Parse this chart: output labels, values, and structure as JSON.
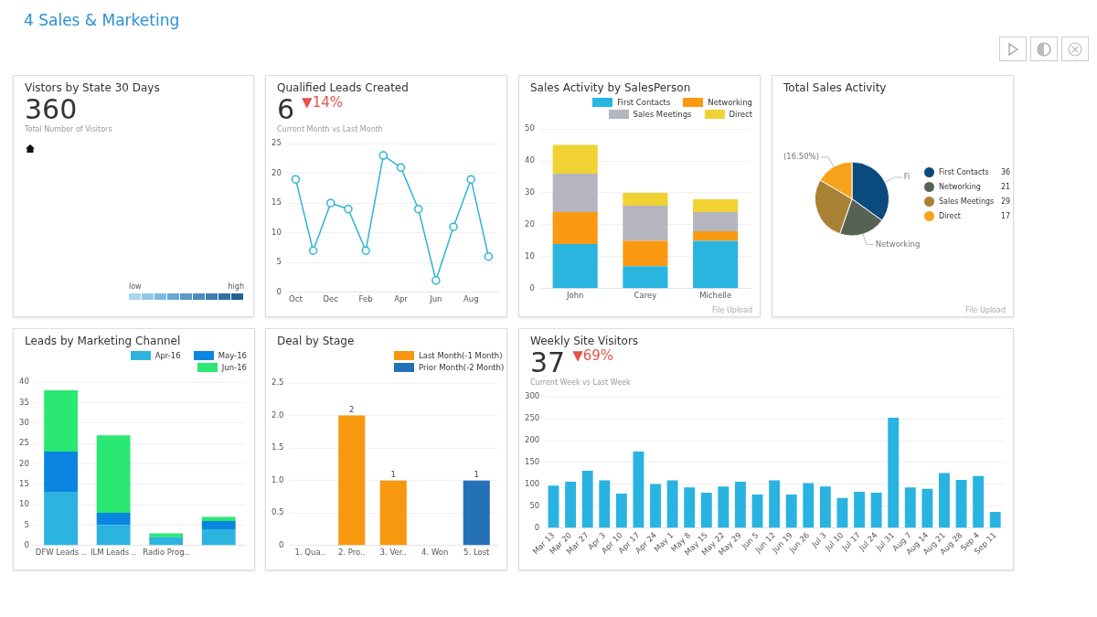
{
  "chart_data": [
    {
      "type": "other",
      "title": "4 Sales & Marketing"
    },
    {
      "type": "other",
      "title": "Vistors by State 30 Days",
      "subtitle": "Total Number of Visitors",
      "annotations": [
        "360",
        "low",
        "high"
      ]
    },
    {
      "type": "line",
      "title": "Qualified Leads Created",
      "subtitle": "Current Month vs Last Month",
      "annotations": [
        "6",
        "▼14%"
      ],
      "categories": [
        "Oct",
        null,
        "Dec",
        null,
        "Feb",
        null,
        "Apr",
        null,
        "Jun",
        null,
        "Aug",
        null
      ],
      "values": [
        19,
        7,
        15,
        14,
        7,
        23,
        21,
        14,
        2,
        11,
        19,
        6
      ],
      "color": "#2ab4dc",
      "marker": "circle",
      "ylim": [
        0,
        25
      ],
      "yticks": [
        0,
        5,
        10,
        15,
        20,
        25
      ],
      "grid": "y"
    },
    {
      "type": "bar",
      "title": "Sales Activity by SalesPerson",
      "annotations": [
        "File Upload"
      ],
      "categories": [
        "John",
        "Carey",
        "Michelle"
      ],
      "stacked": true,
      "legend": "top",
      "ylim": [
        0,
        50
      ],
      "yticks": [
        0,
        10,
        20,
        30,
        40,
        50
      ],
      "grid": "y",
      "series": [
        {
          "name": "First Contacts",
          "color": "#29b5e0",
          "values": [
            14,
            7,
            15
          ]
        },
        {
          "name": "Networking",
          "color": "#fb9a12",
          "values": [
            10,
            8,
            3
          ]
        },
        {
          "name": "Sales Meetings",
          "color": "#b5b5c0",
          "values": [
            12,
            11,
            6
          ]
        },
        {
          "name": "Direct",
          "color": "#f0d232",
          "values": [
            9,
            4,
            4
          ]
        }
      ]
    },
    {
      "type": "pie",
      "title": "Total Sales Activity",
      "annotations": [
        "File Upload",
        {
          "text": "Fi",
          "x": "First Contacts"
        },
        {
          "text": "Networking",
          "x": "Networking"
        },
        {
          "text": "(16.50%)",
          "x": "Direct"
        }
      ],
      "categories": [
        "First Contacts",
        "Networking",
        "Sales Meetings",
        "Direct"
      ],
      "values": [
        36,
        21,
        29,
        17
      ],
      "colors": [
        "#0b4a7c",
        "#566354",
        "#a88134",
        "#f7a21b"
      ],
      "value_labels": [
        "36",
        "21",
        "29",
        "17"
      ],
      "legend": "right"
    },
    {
      "type": "bar",
      "title": "Leads by Marketing Channel",
      "categories": [
        "DFW Leads ..",
        "ILM Leads ..",
        "Radio Prog..",
        null
      ],
      "stacked": true,
      "legend": "top",
      "ylim": [
        0,
        40
      ],
      "yticks": [
        0,
        5,
        10,
        15,
        20,
        25,
        30,
        35,
        40
      ],
      "grid": "y",
      "series": [
        {
          "name": "Apr-16",
          "color": "#2db3e0",
          "values": [
            13,
            5,
            2,
            4
          ]
        },
        {
          "name": "May-16",
          "color": "#0a86e0",
          "values": [
            10,
            3,
            0,
            2
          ]
        },
        {
          "name": "Jun-16",
          "color": "#2ae872",
          "values": [
            15,
            19,
            1,
            1
          ]
        }
      ]
    },
    {
      "type": "bar",
      "title": "Deal by Stage",
      "categories": [
        "1. Qua..",
        "2. Pro..",
        "3. Ver..",
        "4. Won",
        "5. Lost"
      ],
      "legend": "top right",
      "data_labels": true,
      "ylim": [
        0,
        2.5
      ],
      "yticks": [
        0,
        0.5,
        {
          "value": 1,
          "label": "1.0"
        },
        1.5,
        {
          "value": 2,
          "label": "2.0"
        },
        2.5
      ],
      "grid": "y",
      "series": [
        {
          "name": "Last Month(-1 Month)",
          "color": "#f7980f",
          "values": [
            null,
            2,
            1,
            null,
            null
          ]
        },
        {
          "name": "Prior Month(-2 Month)",
          "color": "#2471b8",
          "values": [
            null,
            null,
            null,
            null,
            1
          ]
        }
      ]
    },
    {
      "type": "bar",
      "title": "Weekly Site Visitors",
      "subtitle": "Current Week vs Last Week",
      "annotations": [
        "37",
        "▼69%"
      ],
      "categories": [
        "Mar 13",
        "Mar 20",
        "Mar 27",
        "Apr 3",
        "Apr 10",
        "Apr 17",
        "Apr 24",
        "May 1",
        "May 8",
        "May 15",
        "May 22",
        "May 29",
        "Jun 5",
        "Jun 12",
        "Jun 19",
        "Jun 26",
        "Jul 3",
        "Jul 10",
        "Jul 17",
        "Jul 24",
        "Jul 31",
        "Aug 7",
        "Aug 14",
        "Aug 21",
        "Aug 28",
        "Sep 4",
        "Sep 11"
      ],
      "values": [
        97,
        106,
        131,
        109,
        79,
        175,
        101,
        109,
        93,
        81,
        95,
        106,
        77,
        109,
        77,
        103,
        95,
        69,
        83,
        81,
        252,
        93,
        90,
        126,
        110,
        119,
        37
      ],
      "color": "#29b3e0",
      "ylim": [
        0,
        300
      ],
      "yticks": [
        0,
        50,
        100,
        150,
        200,
        250,
        300
      ],
      "grid": "y"
    }
  ]
}
